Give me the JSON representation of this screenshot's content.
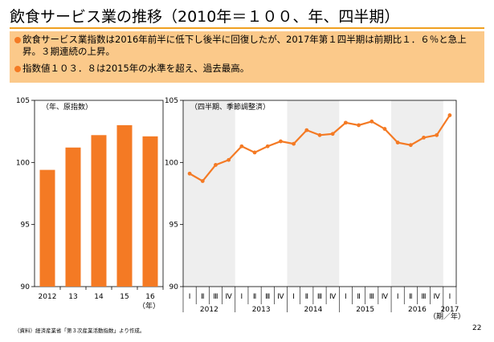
{
  "title": "飲食サービス業の推移（2010年＝１００、年、四半期）",
  "summary": {
    "bullet1": "飲食サービス業指数は2016年前半に低下し後半に回復したが、2017年第１四半期は前期比１．６％と急上昇。３期連続の上昇。",
    "bullet2": "指数値１０３．８は2015年の水準を超え、過去最高。"
  },
  "colors": {
    "accent": "#f47a24",
    "summary_bg": "#fbc98a",
    "rule": "#f0a020",
    "shade": "#eeeeee"
  },
  "chart_data": [
    {
      "type": "bar",
      "title": "（年、原指数）",
      "categories": [
        "2012",
        "13",
        "14",
        "15",
        "16"
      ],
      "values": [
        99.4,
        101.2,
        102.2,
        103.0,
        102.1
      ],
      "ylim": [
        90,
        105
      ],
      "yticks": [
        "90",
        "95",
        "100",
        "105"
      ],
      "xunit": "（年）",
      "color": "#f47a24"
    },
    {
      "type": "line",
      "title": "（四半期、季節調整済）",
      "quarter_labels": [
        "Ⅰ",
        "Ⅱ",
        "Ⅲ",
        "Ⅳ",
        "Ⅰ",
        "Ⅱ",
        "Ⅲ",
        "Ⅳ",
        "Ⅰ",
        "Ⅱ",
        "Ⅲ",
        "Ⅳ",
        "Ⅰ",
        "Ⅱ",
        "Ⅲ",
        "Ⅳ",
        "Ⅰ",
        "Ⅱ",
        "Ⅲ",
        "Ⅳ",
        "Ⅰ"
      ],
      "year_labels": [
        "2012",
        "2013",
        "2014",
        "2015",
        "2016",
        "2017"
      ],
      "values": [
        99.1,
        98.5,
        99.8,
        100.2,
        101.3,
        100.8,
        101.3,
        101.7,
        101.5,
        102.6,
        102.2,
        102.3,
        103.2,
        103.0,
        103.3,
        102.7,
        101.6,
        101.4,
        102.0,
        102.2,
        103.8
      ],
      "ylim": [
        90,
        105
      ],
      "yticks": [
        "90",
        "95",
        "100",
        "105"
      ],
      "xunit": "（期／年）",
      "color": "#f47a24"
    }
  ],
  "source": "（資料）経済産業省「第３次産業活動指数」より作成。",
  "page_number": "22"
}
